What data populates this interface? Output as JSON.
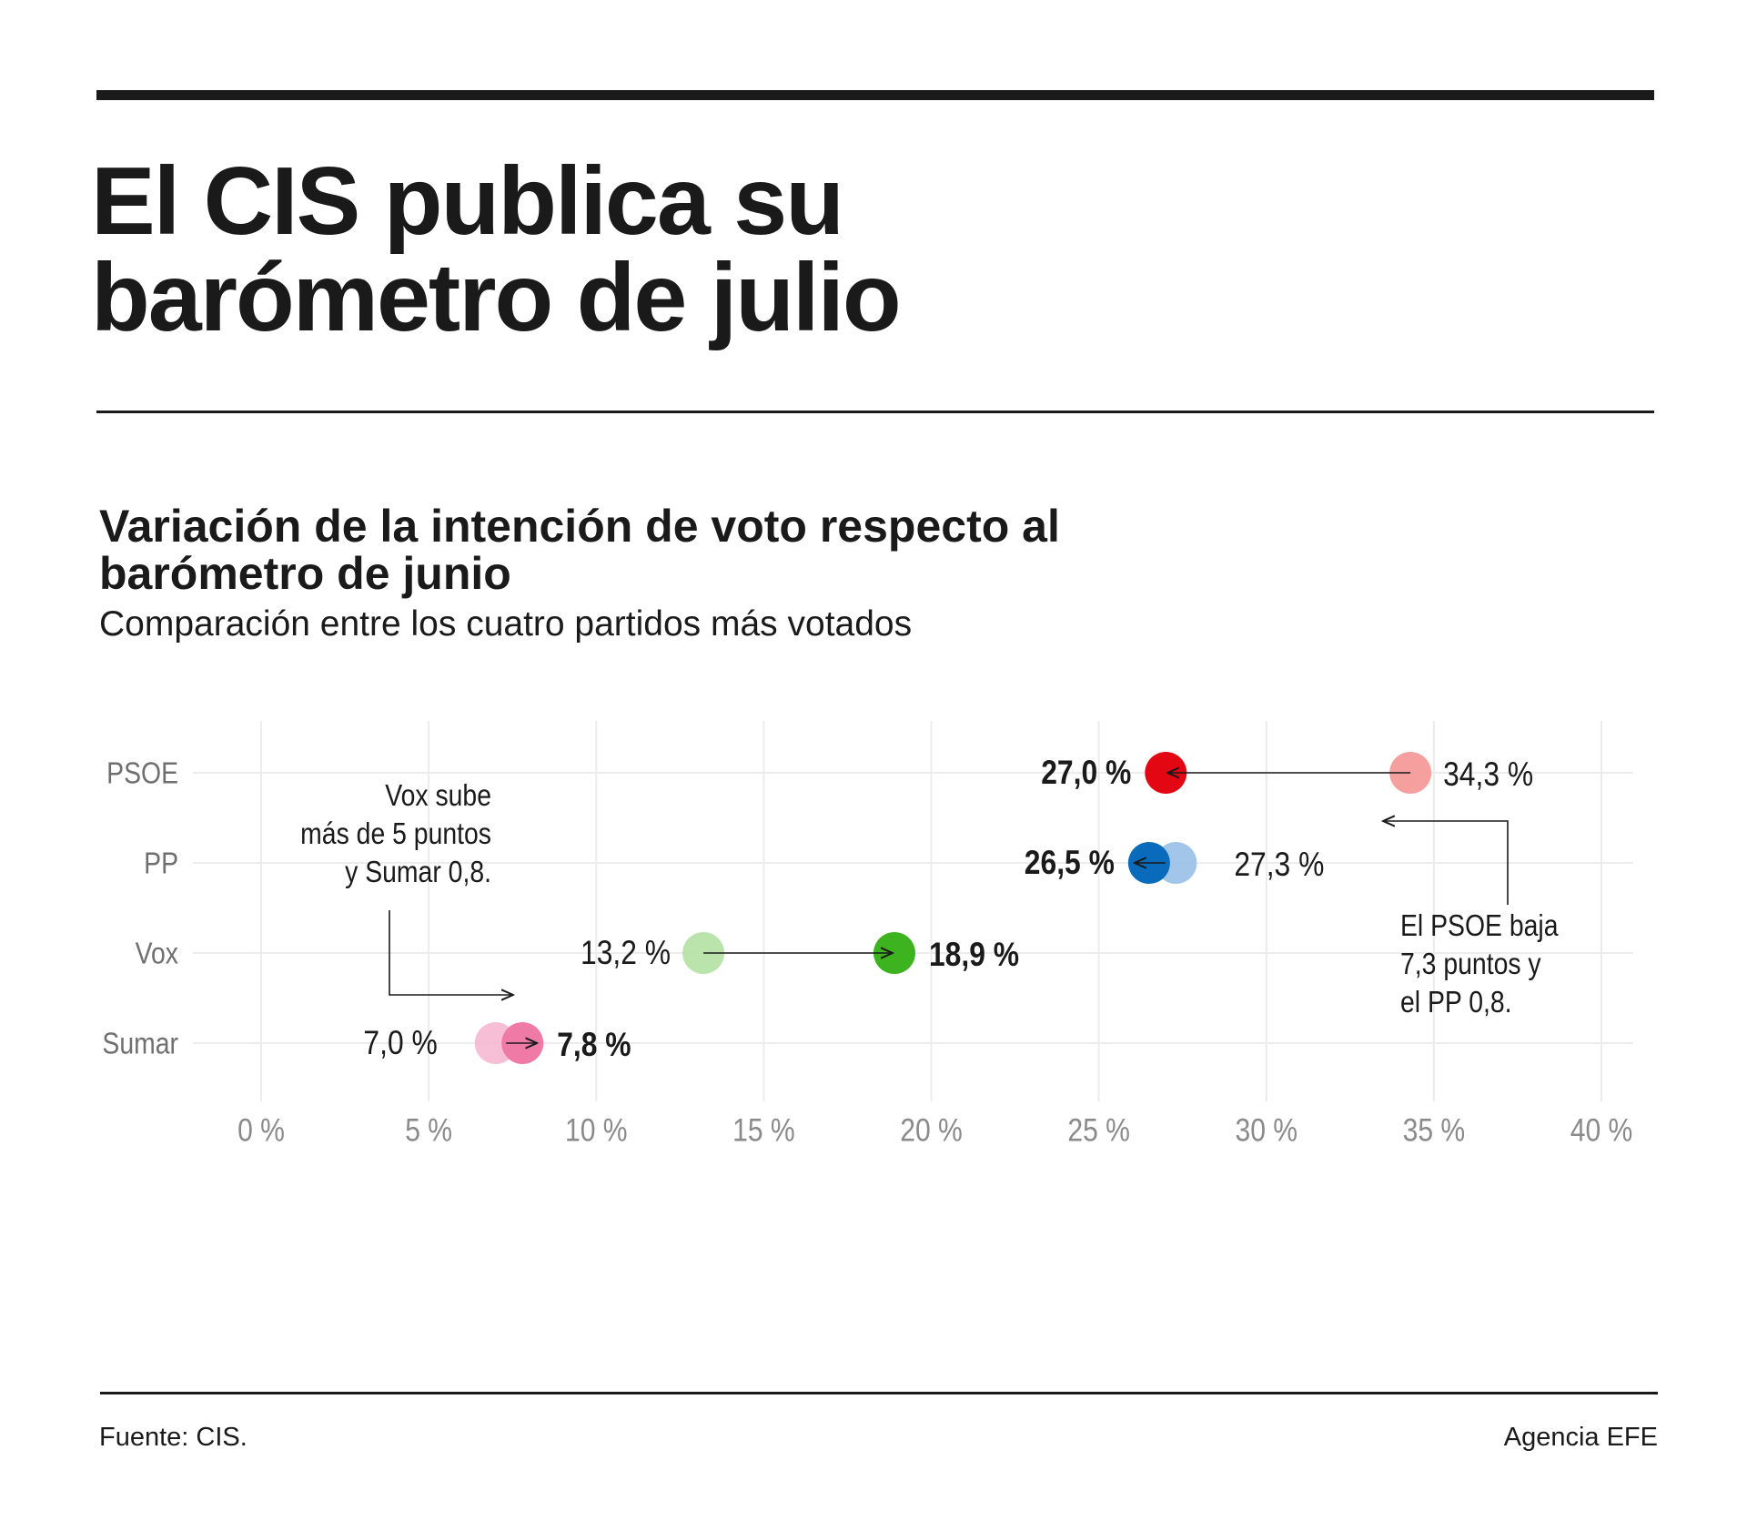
{
  "header": {
    "title_lines": [
      "El CIS publica su",
      "barómetro de julio"
    ]
  },
  "chart_title_lines": [
    "Variación de la intención de voto respecto al",
    "barómetro de junio"
  ],
  "chart_subtitle": "Comparación entre los cuatro partidos más votados",
  "chart_data": {
    "type": "dumbbell",
    "x_label": "",
    "xlim": [
      0,
      40
    ],
    "x_ticks": [
      0,
      5,
      10,
      15,
      20,
      25,
      30,
      35,
      40
    ],
    "x_tick_labels": [
      "0 %",
      "5 %",
      "10 %",
      "15 %",
      "20 %",
      "25 %",
      "30 %",
      "35 %",
      "40 %"
    ],
    "grid": true,
    "categories": [
      "PSOE",
      "PP",
      "Vox",
      "Sumar"
    ],
    "rows": [
      {
        "party": "PSOE",
        "junio": 34.3,
        "julio": 27.0,
        "junio_label": "34,3 %",
        "julio_label": "27,0 %",
        "color_julio": "#e30613",
        "color_junio": "#f49a9a"
      },
      {
        "party": "PP",
        "junio": 27.3,
        "julio": 26.5,
        "junio_label": "27,3 %",
        "julio_label": "26,5 %",
        "color_julio": "#0a6bbd",
        "color_junio": "#9cc3e8"
      },
      {
        "party": "Vox",
        "junio": 13.2,
        "julio": 18.9,
        "junio_label": "13,2 %",
        "julio_label": "18,9 %",
        "color_julio": "#3db31f",
        "color_junio": "#b6e3a6"
      },
      {
        "party": "Sumar",
        "junio": 7.0,
        "julio": 7.8,
        "junio_label": "7,0 %",
        "julio_label": "7,8 %",
        "color_julio": "#f07aa6",
        "color_junio": "#f7bcd3"
      }
    ],
    "annotations": [
      {
        "id": "vox",
        "lines": [
          "Vox sube",
          "más de 5 puntos",
          "y Sumar 0,8."
        ]
      },
      {
        "id": "psoe",
        "lines": [
          "El PSOE baja",
          "7,3 puntos y",
          "el PP 0,8."
        ]
      }
    ]
  },
  "footer": {
    "source": "Fuente: CIS.",
    "credit": "Agencia EFE"
  },
  "colors": {
    "text": "#1a1a1a",
    "axis_text": "#8a8a8a",
    "grid": "#ececec",
    "rule": "#1a1a1a"
  }
}
